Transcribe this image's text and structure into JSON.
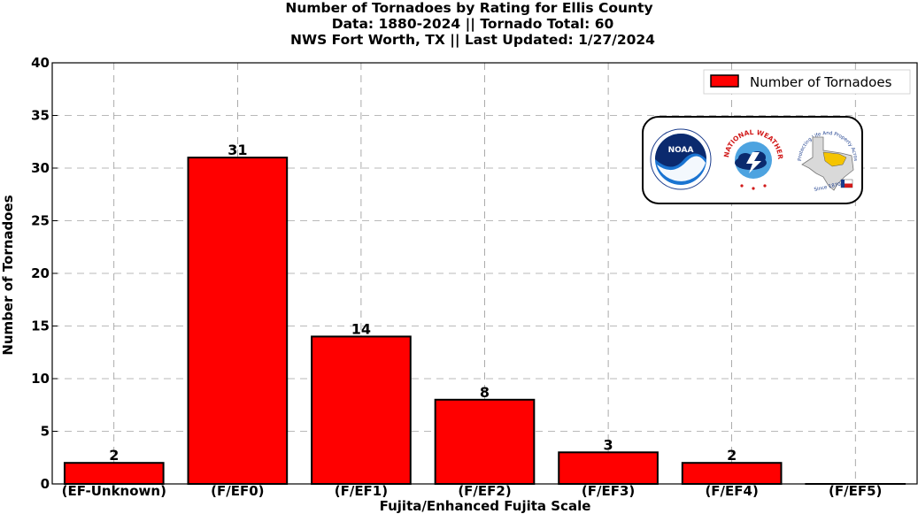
{
  "chart_data": {
    "type": "bar",
    "title_lines": [
      "Number of Tornadoes by Rating for Ellis County",
      "Data: 1880-2024 || Tornado Total: 60",
      "NWS Fort Worth, TX || Last Updated: 1/27/2024"
    ],
    "xlabel": "Fujita/Enhanced Fujita Scale",
    "ylabel": "Number of Tornadoes",
    "categories": [
      "(EF-Unknown)",
      "(F/EF0)",
      "(F/EF1)",
      "(F/EF2)",
      "(F/EF3)",
      "(F/EF4)",
      "(F/EF5)"
    ],
    "series": [
      {
        "name": "Number of Tornadoes",
        "values": [
          2,
          31,
          14,
          8,
          3,
          2,
          0
        ],
        "color": "#ff0000"
      }
    ],
    "data_labels": [
      "2",
      "31",
      "14",
      "8",
      "3",
      "2",
      ""
    ],
    "ylim": [
      0,
      40
    ],
    "yticks": [
      0,
      5,
      10,
      15,
      20,
      25,
      30,
      35,
      40
    ],
    "grid": true,
    "grid_style": "dashed",
    "legend_position": "top-right",
    "logos": [
      "noaa-logo",
      "national-weather-service-logo",
      "texas-nws-office-logo"
    ],
    "logo_text": {
      "noaa": "NOAA",
      "nws_ring": "NATIONAL WEATHER SERVICE",
      "texas_ring": "Protecting Life And Property Across North Texas",
      "texas_since": "Since 1870"
    }
  }
}
